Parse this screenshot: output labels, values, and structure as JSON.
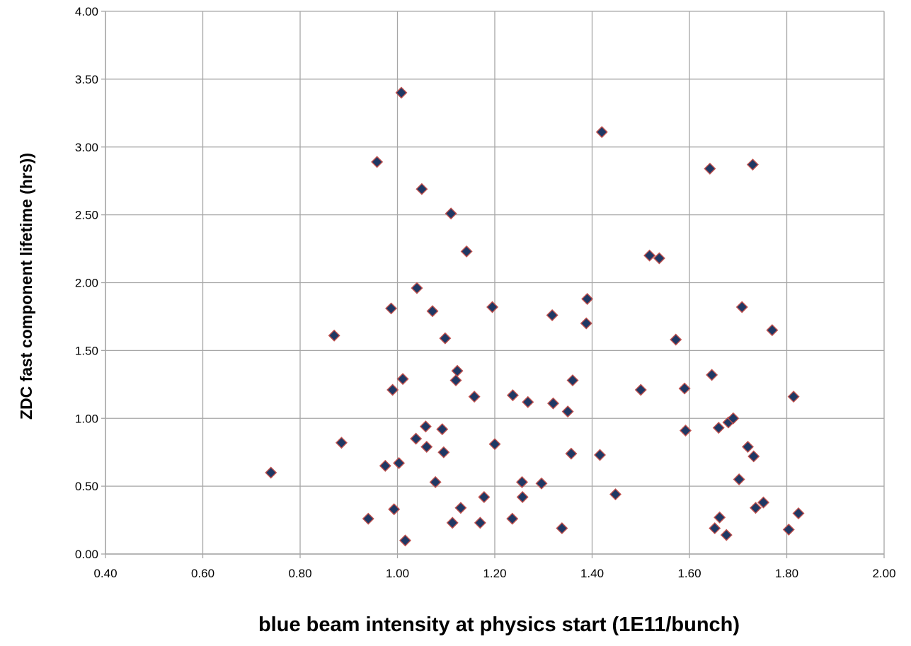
{
  "chart_data": {
    "type": "scatter",
    "title": "",
    "xlabel": "blue beam intensity at physics start (1E11/bunch)",
    "ylabel": "ZDC fast component lifetime (hrs))",
    "xlim": [
      0.4,
      2.0
    ],
    "ylim": [
      0.0,
      4.0
    ],
    "x_ticks": [
      "0.40",
      "0.60",
      "0.80",
      "1.00",
      "1.20",
      "1.40",
      "1.60",
      "1.80",
      "2.00"
    ],
    "y_ticks": [
      "0.00",
      "0.50",
      "1.00",
      "1.50",
      "2.00",
      "2.50",
      "3.00",
      "3.50",
      "4.00"
    ],
    "grid": true,
    "legend": "none",
    "marker": "diamond",
    "marker_fill": "#1f3864",
    "marker_edge": "#c0504d",
    "gridline_color": "#a6a6a6",
    "series": [
      {
        "points": [
          [
            0.74,
            0.6
          ],
          [
            0.87,
            1.61
          ],
          [
            0.885,
            0.82
          ],
          [
            0.94,
            0.26
          ],
          [
            0.958,
            2.89
          ],
          [
            0.975,
            0.65
          ],
          [
            0.987,
            1.81
          ],
          [
            0.99,
            1.21
          ],
          [
            0.993,
            0.33
          ],
          [
            1.003,
            0.67
          ],
          [
            1.008,
            3.4
          ],
          [
            1.011,
            1.29
          ],
          [
            1.016,
            0.1
          ],
          [
            1.038,
            0.85
          ],
          [
            1.04,
            1.96
          ],
          [
            1.05,
            2.69
          ],
          [
            1.058,
            0.94
          ],
          [
            1.06,
            0.79
          ],
          [
            1.072,
            1.79
          ],
          [
            1.078,
            0.53
          ],
          [
            1.092,
            0.92
          ],
          [
            1.095,
            0.75
          ],
          [
            1.098,
            1.59
          ],
          [
            1.11,
            2.51
          ],
          [
            1.113,
            0.23
          ],
          [
            1.12,
            1.28
          ],
          [
            1.123,
            1.35
          ],
          [
            1.13,
            0.34
          ],
          [
            1.142,
            2.23
          ],
          [
            1.158,
            1.16
          ],
          [
            1.17,
            0.23
          ],
          [
            1.178,
            0.42
          ],
          [
            1.195,
            1.82
          ],
          [
            1.2,
            0.81
          ],
          [
            1.236,
            0.26
          ],
          [
            1.237,
            1.17
          ],
          [
            1.256,
            0.53
          ],
          [
            1.257,
            0.42
          ],
          [
            1.268,
            1.12
          ],
          [
            1.296,
            0.52
          ],
          [
            1.318,
            1.76
          ],
          [
            1.32,
            1.11
          ],
          [
            1.338,
            0.19
          ],
          [
            1.35,
            1.05
          ],
          [
            1.357,
            0.74
          ],
          [
            1.36,
            1.28
          ],
          [
            1.388,
            1.7
          ],
          [
            1.39,
            1.88
          ],
          [
            1.416,
            0.73
          ],
          [
            1.42,
            3.11
          ],
          [
            1.448,
            0.44
          ],
          [
            1.5,
            1.21
          ],
          [
            1.518,
            2.2
          ],
          [
            1.538,
            2.18
          ],
          [
            1.572,
            1.58
          ],
          [
            1.59,
            1.22
          ],
          [
            1.592,
            0.91
          ],
          [
            1.642,
            2.84
          ],
          [
            1.646,
            1.32
          ],
          [
            1.652,
            0.19
          ],
          [
            1.66,
            0.93
          ],
          [
            1.662,
            0.27
          ],
          [
            1.676,
            0.14
          ],
          [
            1.68,
            0.97
          ],
          [
            1.69,
            1.0
          ],
          [
            1.702,
            0.55
          ],
          [
            1.708,
            1.82
          ],
          [
            1.72,
            0.79
          ],
          [
            1.73,
            2.87
          ],
          [
            1.732,
            0.72
          ],
          [
            1.736,
            0.34
          ],
          [
            1.752,
            0.38
          ],
          [
            1.77,
            1.65
          ],
          [
            1.804,
            0.18
          ],
          [
            1.814,
            1.16
          ],
          [
            1.824,
            0.3
          ]
        ]
      }
    ]
  }
}
